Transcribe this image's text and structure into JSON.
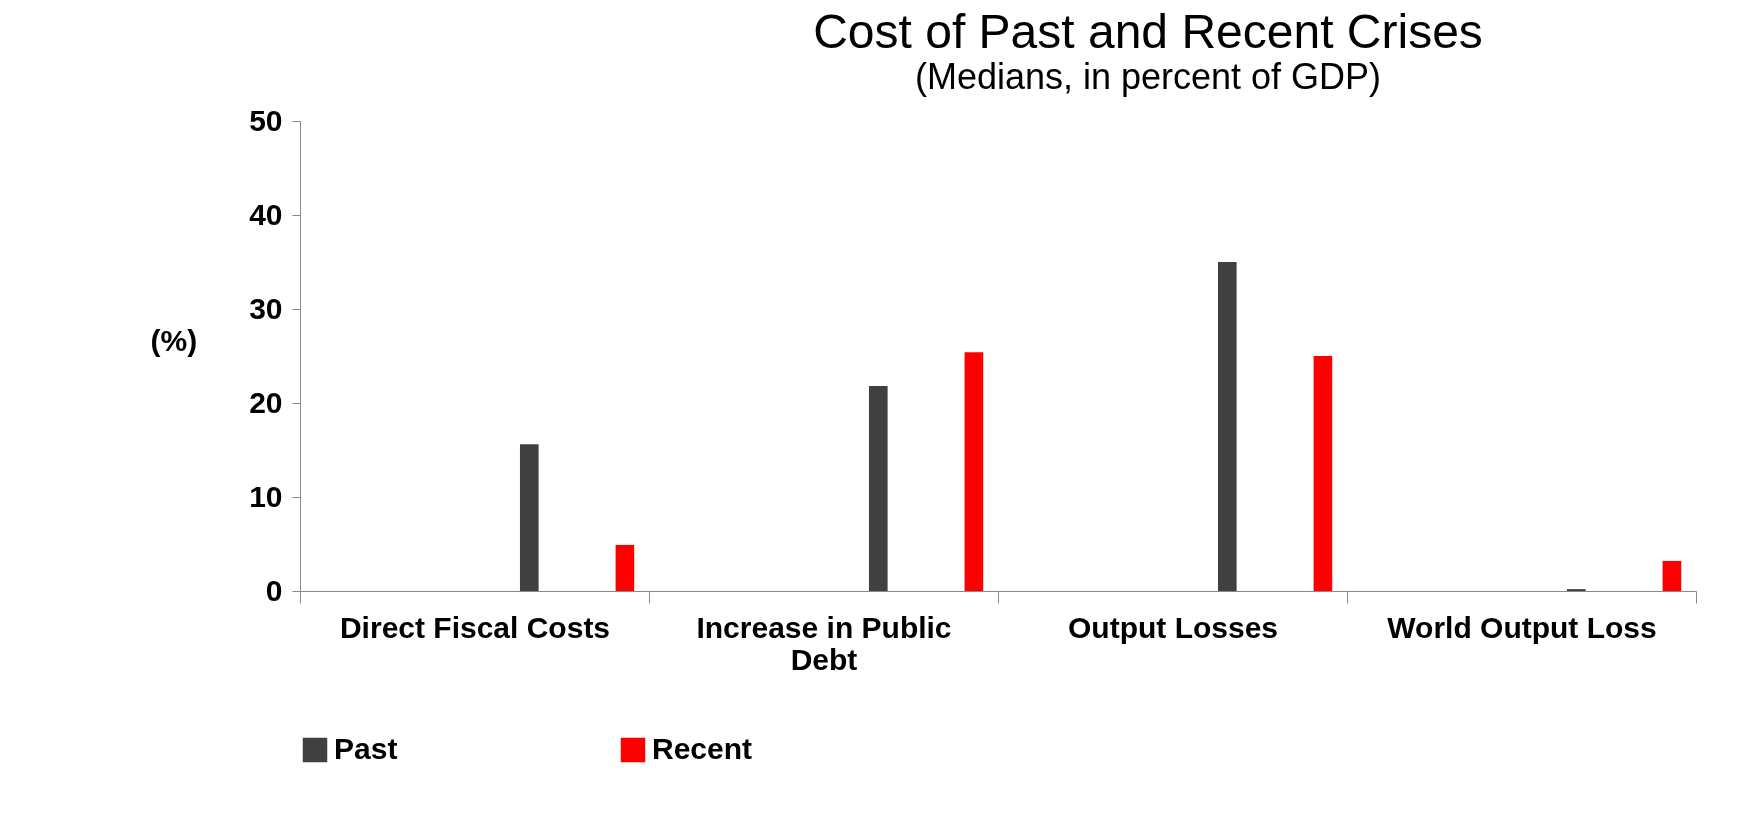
{
  "chart_data": {
    "type": "bar",
    "title": "Cost of Past and Recent Crises",
    "subtitle": "(Medians, in percent of GDP)",
    "ylabel": "(%)",
    "categories": [
      "Direct Fiscal Costs",
      "Increase in Public Debt",
      "Output Losses",
      "World Output Loss"
    ],
    "series": [
      {
        "name": "Past",
        "color": "#404040",
        "values": [
          15.6,
          21.8,
          35.0,
          0.2
        ]
      },
      {
        "name": "Recent",
        "color": "#ff0000",
        "values": [
          4.9,
          25.4,
          25.0,
          3.2
        ]
      }
    ],
    "ylim": [
      0,
      50
    ],
    "yticks": [
      0,
      10,
      20,
      30,
      40,
      50
    ],
    "grid": false,
    "legend": "bottom"
  }
}
